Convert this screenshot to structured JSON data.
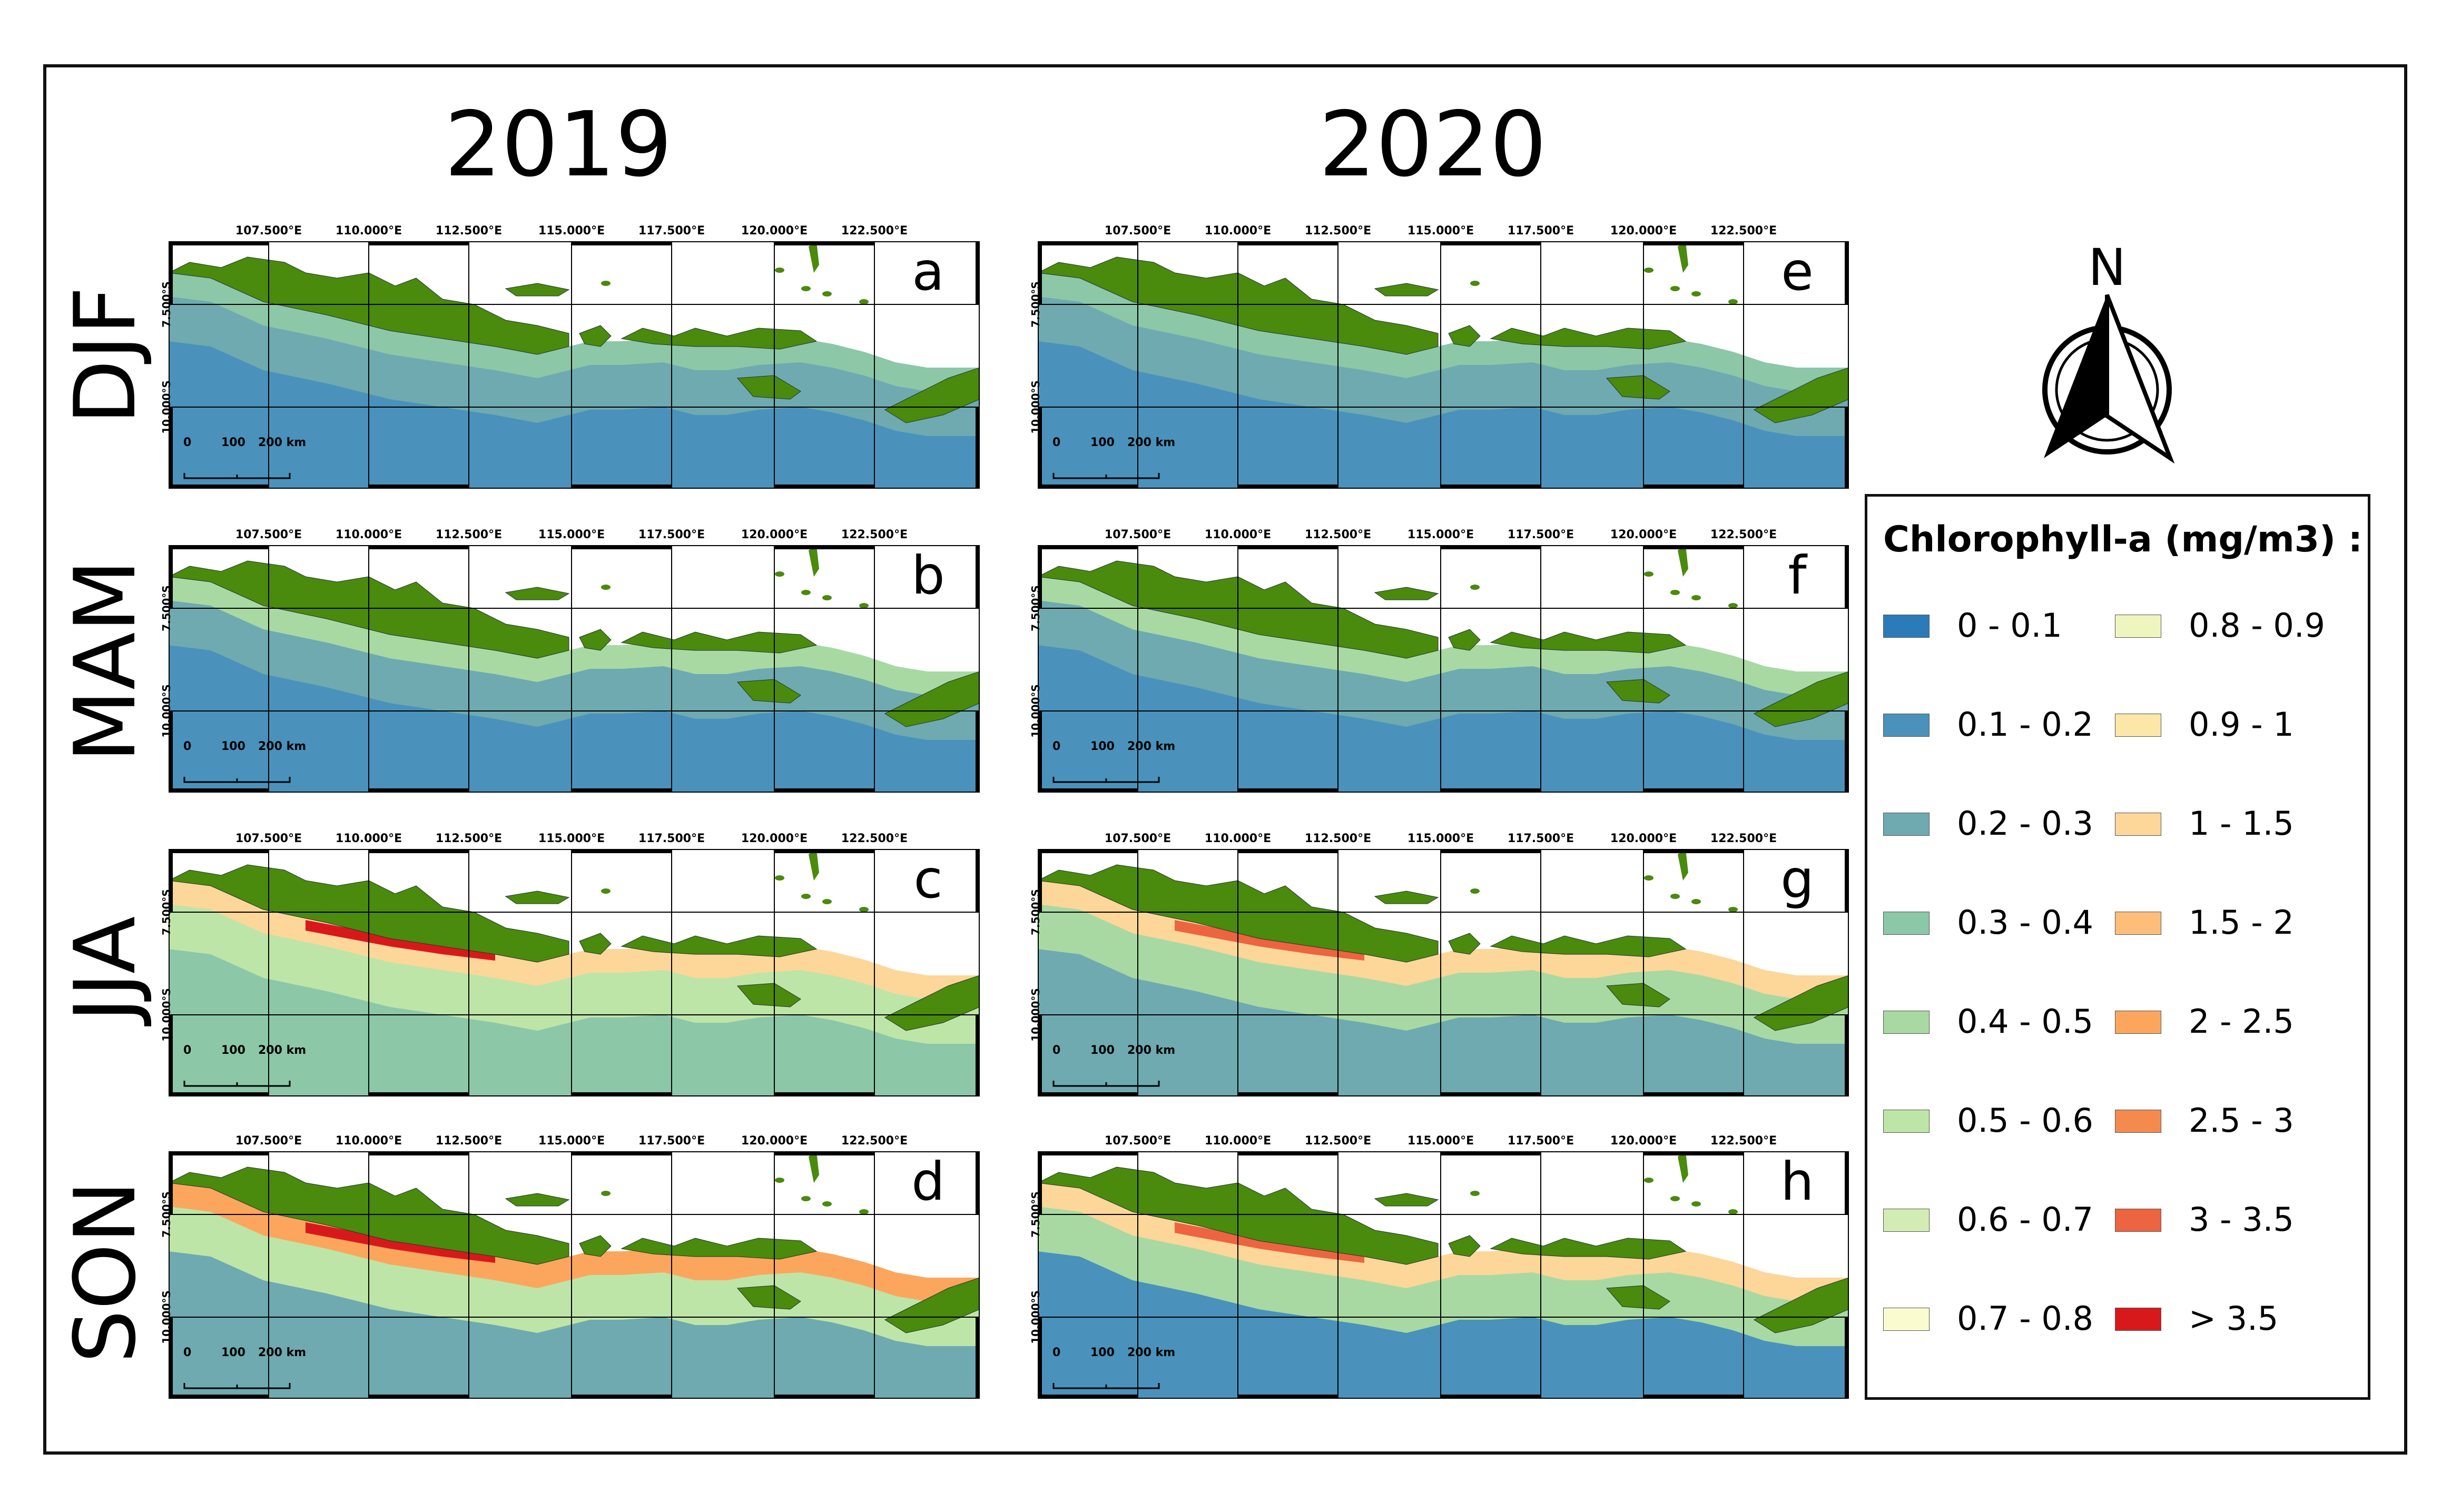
{
  "years": [
    "2019",
    "2020"
  ],
  "seasons": [
    "DJF",
    "MAM",
    "JJA",
    "SON"
  ],
  "panel_letters": [
    "a",
    "b",
    "c",
    "d",
    "e",
    "f",
    "g",
    "h"
  ],
  "lon_labels": [
    "107.500°E",
    "110.000°E",
    "112.500°E",
    "115.000°E",
    "117.500°E",
    "120.000°E",
    "122.500°E"
  ],
  "lat_labels": [
    "7.500°S",
    "10.000°S"
  ],
  "scale_bar": {
    "zero": "0",
    "mid": "100",
    "end": "200 km"
  },
  "north_arrow": {
    "label": "N",
    "icon": "north-arrow-icon"
  },
  "colors": {
    "land": "#4a8a0c",
    "border": "#111111"
  },
  "legend": {
    "title": "Chlorophyll-a (mg/m3) :",
    "classes": [
      {
        "label": "0 - 0.1",
        "color": "#2b7bb9"
      },
      {
        "label": "0.1 - 0.2",
        "color": "#4a92bb"
      },
      {
        "label": "0.2 - 0.3",
        "color": "#6eaab0"
      },
      {
        "label": "0.3 - 0.4",
        "color": "#8cc7a8"
      },
      {
        "label": "0.4 - 0.5",
        "color": "#a8d9a2"
      },
      {
        "label": "0.5 - 0.6",
        "color": "#bee5a8"
      },
      {
        "label": "0.6 - 0.7",
        "color": "#d3ecb4"
      },
      {
        "label": "0.7 - 0.8",
        "color": "#fbfbd0"
      },
      {
        "label": "0.8 - 0.9",
        "color": "#eef5bf"
      },
      {
        "label": "0.9 - 1",
        "color": "#fce6a8"
      },
      {
        "label": "1 - 1.5",
        "color": "#fdd699"
      },
      {
        "label": "1.5 - 2",
        "color": "#fdbe7a"
      },
      {
        "label": "2 - 2.5",
        "color": "#fca65d"
      },
      {
        "label": "2.5 - 3",
        "color": "#f58a4e"
      },
      {
        "label": "3 - 3.5",
        "color": "#ec6440"
      },
      {
        "label": "> 3.5",
        "color": "#d7191c"
      }
    ]
  },
  "panels": [
    {
      "id": "a",
      "year": "2019",
      "season": "DJF",
      "pattern": {
        "base": "#4a92bb",
        "near": "#6eaab0",
        "coast": "#8cc7a8",
        "hot": null
      }
    },
    {
      "id": "b",
      "year": "2019",
      "season": "MAM",
      "pattern": {
        "base": "#4a92bb",
        "near": "#6eaab0",
        "coast": "#a8d9a2",
        "hot": null
      }
    },
    {
      "id": "c",
      "year": "2019",
      "season": "JJA",
      "pattern": {
        "base": "#8cc7a8",
        "near": "#bee5a8",
        "coast": "#fdd699",
        "hot": "#d7191c"
      }
    },
    {
      "id": "d",
      "year": "2019",
      "season": "SON",
      "pattern": {
        "base": "#6eaab0",
        "near": "#bee5a8",
        "coast": "#fca65d",
        "hot": "#d7191c"
      }
    },
    {
      "id": "e",
      "year": "2020",
      "season": "DJF",
      "pattern": {
        "base": "#4a92bb",
        "near": "#6eaab0",
        "coast": "#8cc7a8",
        "hot": null
      }
    },
    {
      "id": "f",
      "year": "2020",
      "season": "MAM",
      "pattern": {
        "base": "#4a92bb",
        "near": "#6eaab0",
        "coast": "#a8d9a2",
        "hot": null
      }
    },
    {
      "id": "g",
      "year": "2020",
      "season": "JJA",
      "pattern": {
        "base": "#6eaab0",
        "near": "#a8d9a2",
        "coast": "#fdd699",
        "hot": "#ec6440"
      }
    },
    {
      "id": "h",
      "year": "2020",
      "season": "SON",
      "pattern": {
        "base": "#4a92bb",
        "near": "#a8d9a2",
        "coast": "#fdd699",
        "hot": "#ec6440"
      }
    }
  ]
}
